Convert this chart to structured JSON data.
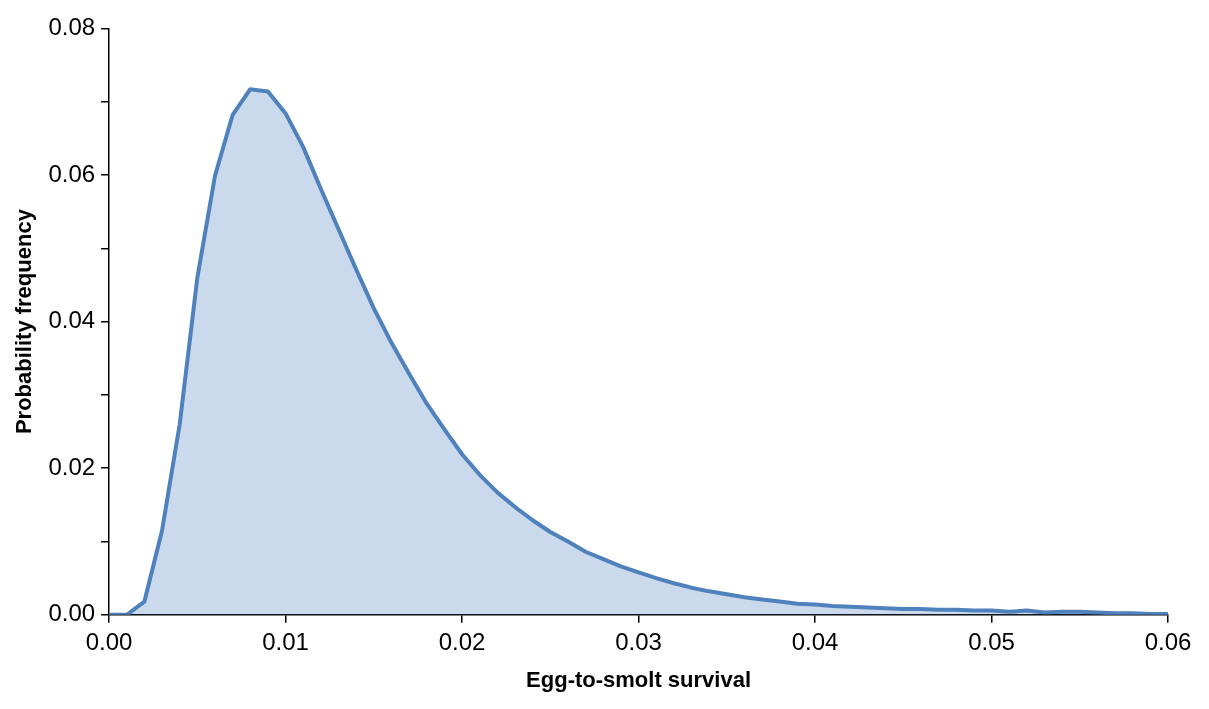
{
  "chart_data": {
    "type": "area",
    "xlabel": "Egg-to-smolt survival",
    "ylabel": "Probability frequency",
    "x": [
      0,
      0.001,
      0.002,
      0.003,
      0.004,
      0.005,
      0.006,
      0.007,
      0.008,
      0.009,
      0.01,
      0.011,
      0.012,
      0.013,
      0.014,
      0.015,
      0.016,
      0.017,
      0.018,
      0.019,
      0.02,
      0.021,
      0.022,
      0.023,
      0.024,
      0.025,
      0.026,
      0.027,
      0.028,
      0.029,
      0.03,
      0.031,
      0.032,
      0.033,
      0.034,
      0.035,
      0.036,
      0.037,
      0.038,
      0.039,
      0.04,
      0.041,
      0.042,
      0.043,
      0.044,
      0.045,
      0.046,
      0.047,
      0.048,
      0.049,
      0.05,
      0.051,
      0.052,
      0.053,
      0.054,
      0.055,
      0.056,
      0.057,
      0.058,
      0.059,
      0.06
    ],
    "series": [
      {
        "color": "#4f81bd",
        "values": [
          0,
          0,
          0.0018,
          0.0115,
          0.026,
          0.046,
          0.0599,
          0.0682,
          0.0717,
          0.0714,
          0.0684,
          0.0638,
          0.0581,
          0.0526,
          0.0471,
          0.0418,
          0.0371,
          0.0329,
          0.0288,
          0.0253,
          0.0219,
          0.0191,
          0.0167,
          0.0147,
          0.0129,
          0.0113,
          0.01,
          0.0086,
          0.0076,
          0.0066,
          0.0058,
          0.005,
          0.0043,
          0.0037,
          0.0032,
          0.0028,
          0.0024,
          0.0021,
          0.0018,
          0.0015,
          0.0014,
          0.0012,
          0.0011,
          0.001,
          0.0009,
          0.0008,
          0.0008,
          0.0007,
          0.0007,
          0.0006,
          0.0006,
          0.0004,
          0.0006,
          0.0003,
          0.0004,
          0.0004,
          0.0003,
          0.0002,
          0.0002,
          0.0001,
          0.0001
        ]
      }
    ],
    "xlim": [
      0,
      0.06
    ],
    "xticks": [
      {
        "value": 0,
        "label": "0.00"
      },
      {
        "value": 0.01,
        "label": "0.01"
      },
      {
        "value": 0.02,
        "label": "0.02"
      },
      {
        "value": 0.03,
        "label": "0.03"
      },
      {
        "value": 0.04,
        "label": "0.04"
      },
      {
        "value": 0.05,
        "label": "0.05"
      },
      {
        "value": 0.06,
        "label": "0.06"
      }
    ],
    "ylim": [
      0,
      0.08
    ],
    "yticks": [
      {
        "value": 0,
        "label": "0.00"
      },
      {
        "value": 0.01,
        "label": null
      },
      {
        "value": 0.02,
        "label": "0.02"
      },
      {
        "value": 0.03,
        "label": null
      },
      {
        "value": 0.04,
        "label": "0.04"
      },
      {
        "value": 0.05,
        "label": null
      },
      {
        "value": 0.06,
        "label": "0.06"
      },
      {
        "value": 0.07,
        "label": null
      },
      {
        "value": 0.08,
        "label": "0.08"
      }
    ]
  }
}
